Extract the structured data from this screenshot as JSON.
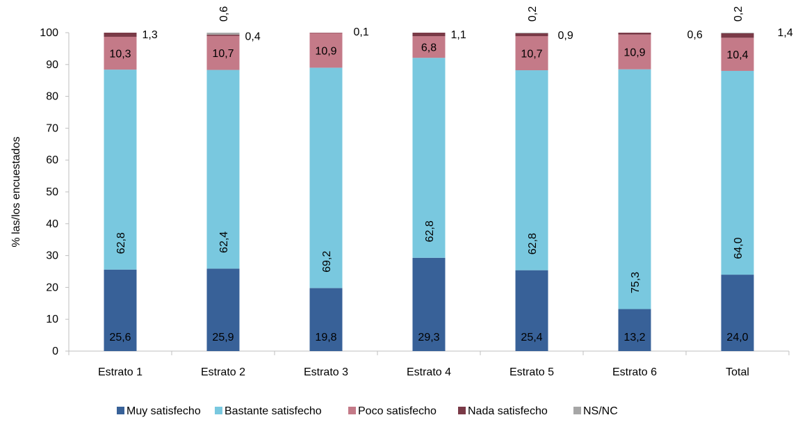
{
  "chart_data": {
    "type": "bar",
    "stacked": true,
    "categories": [
      "Estrato 1",
      "Estrato 2",
      "Estrato 3",
      "Estrato 4",
      "Estrato 5",
      "Estrato 6",
      "Total"
    ],
    "series": [
      {
        "name": "Muy satisfecho",
        "color": "#386198",
        "values": [
          25.6,
          25.9,
          19.8,
          29.3,
          25.4,
          13.2,
          24.0
        ],
        "labels": [
          "25,6",
          "25,9",
          "19,8",
          "29,3",
          "25,4",
          "13,2",
          "24,0"
        ]
      },
      {
        "name": "Bastante satisfecho",
        "color": "#79c8df",
        "values": [
          62.8,
          62.4,
          69.2,
          62.8,
          62.8,
          75.3,
          64.0
        ],
        "labels": [
          "62,8",
          "62,4",
          "69,2",
          "62,8",
          "62,8",
          "75,3",
          "64,0"
        ]
      },
      {
        "name": "Poco satisfecho",
        "color": "#c47a88",
        "values": [
          10.3,
          10.7,
          10.9,
          6.8,
          10.7,
          10.9,
          10.4
        ],
        "labels": [
          "10,3",
          "10,7",
          "10,9",
          "6,8",
          "10,7",
          "10,9",
          "10,4"
        ]
      },
      {
        "name": "Nada satisfecho",
        "color": "#7a3a47",
        "values": [
          1.3,
          0.4,
          0.1,
          1.1,
          0.9,
          0.6,
          1.4
        ],
        "labels": [
          "1,3",
          "0,4",
          "0,1",
          "1,1",
          "0,9",
          "0,6",
          "1,4"
        ]
      },
      {
        "name": "NS/NC",
        "color": "#a6a6a6",
        "values": [
          0,
          0.6,
          0,
          0,
          0.2,
          0,
          0.2
        ],
        "labels": [
          "",
          "0,6",
          "",
          "",
          "0,2",
          "",
          "0,2"
        ]
      }
    ],
    "title": "",
    "xlabel": "",
    "ylabel": "% las/los encuestados",
    "ylim": [
      0,
      100
    ],
    "yticks": [
      0,
      10,
      20,
      30,
      40,
      50,
      60,
      70,
      80,
      90,
      100
    ],
    "grid": false,
    "legend": "bottom"
  }
}
